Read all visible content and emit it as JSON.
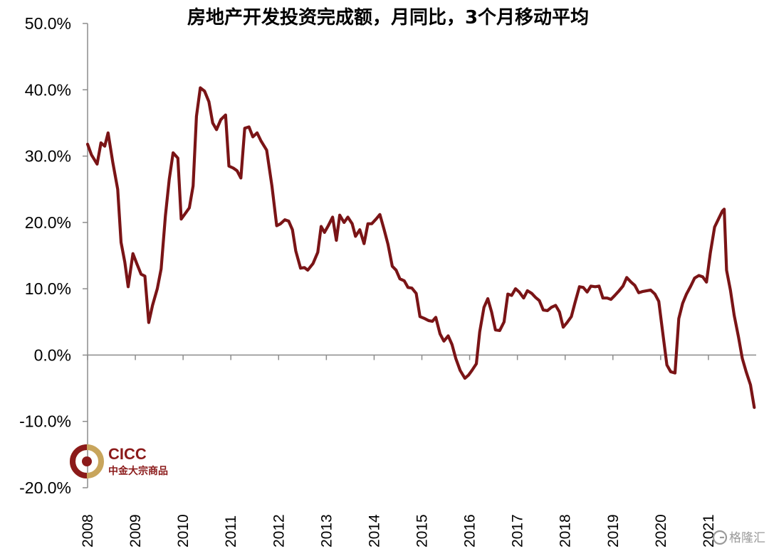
{
  "colors": {
    "line": "#7a1416",
    "axis": "#8c8c8c",
    "logo_red": "#8b1a1a",
    "logo_gold": "#c8a55c"
  },
  "logo": {
    "name_en": "CICC",
    "name_cn": "中金大宗商品",
    "icon": "cicc-ring-icon"
  },
  "watermark": {
    "text": "格隆汇",
    "icon": "gelonghui-g-icon"
  },
  "chart_data": {
    "type": "line",
    "title": "房地产开发投资完成额，月同比，3个月移动平均",
    "xlabel": "",
    "ylabel": "",
    "ylim": [
      -20,
      50
    ],
    "xlim": [
      2008,
      2022
    ],
    "grid": false,
    "yticks": [
      {
        "value": 50,
        "label": "50.0%"
      },
      {
        "value": 40,
        "label": "40.0%"
      },
      {
        "value": 30,
        "label": "30.0%"
      },
      {
        "value": 20,
        "label": "20.0%"
      },
      {
        "value": 10,
        "label": "10.0%"
      },
      {
        "value": 0,
        "label": "0.0%"
      },
      {
        "value": -10,
        "label": "-10.0%"
      },
      {
        "value": -20,
        "label": "-20.0%"
      }
    ],
    "xticks": [
      "2008",
      "2009",
      "2010",
      "2011",
      "2012",
      "2013",
      "2014",
      "2015",
      "2016",
      "2017",
      "2018",
      "2019",
      "2020",
      "2021"
    ],
    "series": [
      {
        "values": [
          [
            2008.0,
            31.8
          ],
          [
            2008.08,
            30.2
          ],
          [
            2008.2,
            28.8
          ],
          [
            2008.28,
            32.0
          ],
          [
            2008.36,
            31.5
          ],
          [
            2008.43,
            33.5
          ],
          [
            2008.53,
            29.0
          ],
          [
            2008.63,
            25.0
          ],
          [
            2008.7,
            17.0
          ],
          [
            2008.78,
            14.0
          ],
          [
            2008.85,
            10.3
          ],
          [
            2008.95,
            15.3
          ],
          [
            2009.03,
            13.8
          ],
          [
            2009.12,
            12.2
          ],
          [
            2009.2,
            11.9
          ],
          [
            2009.28,
            4.9
          ],
          [
            2009.36,
            7.5
          ],
          [
            2009.46,
            10.0
          ],
          [
            2009.54,
            13.0
          ],
          [
            2009.63,
            21.0
          ],
          [
            2009.71,
            26.5
          ],
          [
            2009.79,
            30.5
          ],
          [
            2009.89,
            29.7
          ],
          [
            2009.96,
            20.5
          ],
          [
            2010.03,
            21.2
          ],
          [
            2010.13,
            22.2
          ],
          [
            2010.21,
            25.5
          ],
          [
            2010.28,
            36.0
          ],
          [
            2010.36,
            40.3
          ],
          [
            2010.45,
            39.8
          ],
          [
            2010.54,
            38.2
          ],
          [
            2010.62,
            35.0
          ],
          [
            2010.7,
            34.0
          ],
          [
            2010.79,
            35.5
          ],
          [
            2010.89,
            36.2
          ],
          [
            2010.96,
            28.5
          ],
          [
            2011.05,
            28.2
          ],
          [
            2011.13,
            27.8
          ],
          [
            2011.21,
            26.7
          ],
          [
            2011.29,
            34.2
          ],
          [
            2011.38,
            34.4
          ],
          [
            2011.46,
            32.9
          ],
          [
            2011.55,
            33.5
          ],
          [
            2011.63,
            32.3
          ],
          [
            2011.75,
            30.9
          ],
          [
            2011.86,
            25.5
          ],
          [
            2011.96,
            19.5
          ],
          [
            2012.04,
            19.8
          ],
          [
            2012.13,
            20.4
          ],
          [
            2012.21,
            20.2
          ],
          [
            2012.29,
            18.9
          ],
          [
            2012.36,
            15.7
          ],
          [
            2012.46,
            13.1
          ],
          [
            2012.54,
            13.2
          ],
          [
            2012.61,
            12.8
          ],
          [
            2012.72,
            13.8
          ],
          [
            2012.82,
            15.5
          ],
          [
            2012.89,
            19.4
          ],
          [
            2012.96,
            18.5
          ],
          [
            2013.04,
            19.5
          ],
          [
            2013.13,
            20.8
          ],
          [
            2013.21,
            17.3
          ],
          [
            2013.28,
            21.1
          ],
          [
            2013.37,
            20.0
          ],
          [
            2013.45,
            20.8
          ],
          [
            2013.54,
            19.8
          ],
          [
            2013.61,
            17.9
          ],
          [
            2013.7,
            18.9
          ],
          [
            2013.79,
            16.8
          ],
          [
            2013.87,
            19.8
          ],
          [
            2013.95,
            19.8
          ],
          [
            2014.04,
            20.5
          ],
          [
            2014.12,
            21.2
          ],
          [
            2014.21,
            18.9
          ],
          [
            2014.29,
            16.7
          ],
          [
            2014.38,
            13.4
          ],
          [
            2014.46,
            12.8
          ],
          [
            2014.54,
            11.5
          ],
          [
            2014.63,
            11.2
          ],
          [
            2014.71,
            10.2
          ],
          [
            2014.79,
            10.1
          ],
          [
            2014.88,
            9.3
          ],
          [
            2014.96,
            5.8
          ],
          [
            2015.06,
            5.5
          ],
          [
            2015.14,
            5.2
          ],
          [
            2015.22,
            5.1
          ],
          [
            2015.29,
            5.7
          ],
          [
            2015.38,
            3.2
          ],
          [
            2015.46,
            2.1
          ],
          [
            2015.55,
            2.9
          ],
          [
            2015.63,
            1.6
          ],
          [
            2015.71,
            -0.5
          ],
          [
            2015.8,
            -2.3
          ],
          [
            2015.9,
            -3.5
          ],
          [
            2015.98,
            -3.0
          ],
          [
            2016.05,
            -2.3
          ],
          [
            2016.14,
            -1.3
          ],
          [
            2016.21,
            3.5
          ],
          [
            2016.3,
            7.2
          ],
          [
            2016.38,
            8.5
          ],
          [
            2016.46,
            6.5
          ],
          [
            2016.54,
            3.8
          ],
          [
            2016.63,
            3.7
          ],
          [
            2016.72,
            5.0
          ],
          [
            2016.8,
            9.2
          ],
          [
            2016.88,
            9.0
          ],
          [
            2016.96,
            10.0
          ],
          [
            2017.04,
            9.5
          ],
          [
            2017.13,
            8.6
          ],
          [
            2017.21,
            9.7
          ],
          [
            2017.3,
            9.3
          ],
          [
            2017.38,
            8.7
          ],
          [
            2017.46,
            8.2
          ],
          [
            2017.54,
            6.8
          ],
          [
            2017.63,
            6.7
          ],
          [
            2017.71,
            7.2
          ],
          [
            2017.8,
            7.5
          ],
          [
            2017.88,
            6.5
          ],
          [
            2017.96,
            4.2
          ],
          [
            2018.04,
            4.9
          ],
          [
            2018.13,
            5.8
          ],
          [
            2018.21,
            8.0
          ],
          [
            2018.3,
            10.3
          ],
          [
            2018.38,
            10.2
          ],
          [
            2018.46,
            9.5
          ],
          [
            2018.54,
            10.4
          ],
          [
            2018.63,
            10.3
          ],
          [
            2018.71,
            10.4
          ],
          [
            2018.79,
            8.6
          ],
          [
            2018.88,
            8.6
          ],
          [
            2018.96,
            8.4
          ],
          [
            2019.04,
            9.0
          ],
          [
            2019.13,
            9.7
          ],
          [
            2019.21,
            10.4
          ],
          [
            2019.29,
            11.7
          ],
          [
            2019.38,
            11.0
          ],
          [
            2019.46,
            10.5
          ],
          [
            2019.54,
            9.4
          ],
          [
            2019.63,
            9.6
          ],
          [
            2019.71,
            9.7
          ],
          [
            2019.79,
            9.8
          ],
          [
            2019.88,
            9.2
          ],
          [
            2019.96,
            8.1
          ],
          [
            2020.05,
            3.0
          ],
          [
            2020.13,
            -1.5
          ],
          [
            2020.21,
            -2.5
          ],
          [
            2020.3,
            -2.7
          ],
          [
            2020.38,
            5.5
          ],
          [
            2020.46,
            7.8
          ],
          [
            2020.54,
            9.2
          ],
          [
            2020.63,
            10.4
          ],
          [
            2020.71,
            11.6
          ],
          [
            2020.8,
            12.0
          ],
          [
            2020.88,
            11.8
          ],
          [
            2020.96,
            11.0
          ],
          [
            2021.04,
            15.4
          ],
          [
            2021.13,
            19.3
          ],
          [
            2021.21,
            20.5
          ],
          [
            2021.29,
            21.7
          ],
          [
            2021.33,
            22.0
          ],
          [
            2021.38,
            12.8
          ],
          [
            2021.46,
            9.8
          ],
          [
            2021.54,
            6.0
          ],
          [
            2021.63,
            2.7
          ],
          [
            2021.71,
            -0.5
          ],
          [
            2021.79,
            -2.5
          ],
          [
            2021.88,
            -4.5
          ],
          [
            2021.96,
            -7.9
          ]
        ]
      }
    ]
  }
}
